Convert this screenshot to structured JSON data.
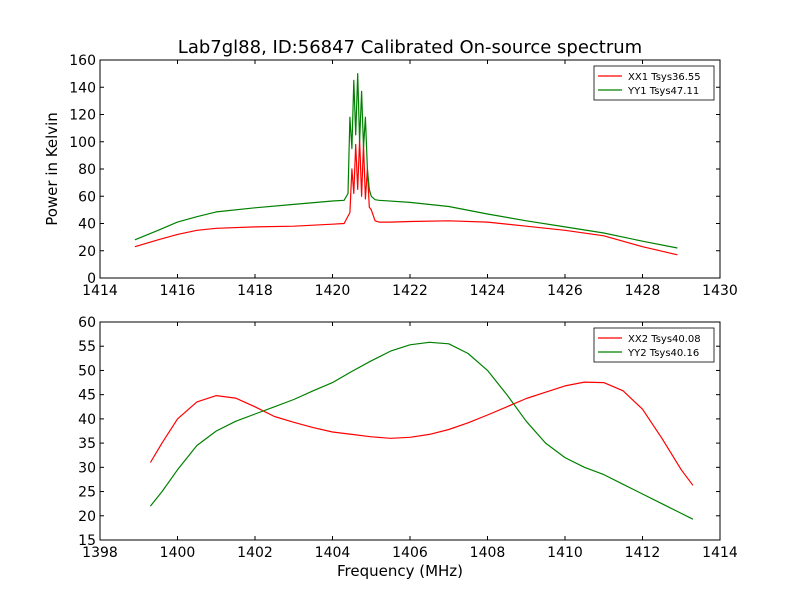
{
  "title": "Lab7gl88, ID:56847 Calibrated On-source spectrum",
  "chart_data": [
    {
      "type": "line",
      "xlabel": "",
      "ylabel": "Power in Kelvin",
      "xlim": [
        1414,
        1430
      ],
      "ylim": [
        0,
        160
      ],
      "xticks": [
        1414,
        1416,
        1418,
        1420,
        1422,
        1424,
        1426,
        1428,
        1430
      ],
      "yticks": [
        0,
        20,
        40,
        60,
        80,
        100,
        120,
        140,
        160
      ],
      "legend_position": "top-right",
      "series": [
        {
          "name": "XX1 Tsys36.55",
          "color": "#ff0000",
          "x": [
            1414.9,
            1415.5,
            1416.0,
            1416.5,
            1417.0,
            1418.0,
            1419.0,
            1420.0,
            1420.3,
            1420.45,
            1420.5,
            1420.55,
            1420.6,
            1420.65,
            1420.7,
            1420.75,
            1420.8,
            1420.85,
            1420.9,
            1420.95,
            1421.0,
            1421.1,
            1421.2,
            1421.5,
            1422.0,
            1423.0,
            1424.0,
            1425.0,
            1426.0,
            1427.0,
            1428.0,
            1428.9
          ],
          "y": [
            23,
            28,
            32,
            35,
            36.5,
            37.5,
            38,
            39.5,
            40,
            48,
            80,
            62,
            98,
            65,
            102,
            60,
            98,
            58,
            80,
            52,
            50,
            42,
            41,
            41,
            41.5,
            42,
            41,
            38,
            35,
            31,
            23,
            17
          ]
        },
        {
          "name": "YY1 Tsys47.11",
          "color": "#008000",
          "x": [
            1414.9,
            1415.5,
            1416.0,
            1416.5,
            1417.0,
            1418.0,
            1419.0,
            1420.0,
            1420.3,
            1420.4,
            1420.45,
            1420.5,
            1420.55,
            1420.6,
            1420.65,
            1420.7,
            1420.75,
            1420.8,
            1420.85,
            1420.9,
            1420.95,
            1421.0,
            1421.1,
            1421.2,
            1422.0,
            1423.0,
            1424.0,
            1425.0,
            1426.0,
            1427.0,
            1428.0,
            1428.9
          ],
          "y": [
            28,
            35,
            41,
            45,
            48.5,
            51.5,
            54,
            56.5,
            57,
            62,
            118,
            95,
            145,
            105,
            150,
            100,
            137,
            96,
            118,
            80,
            65,
            60,
            57.5,
            57,
            55.5,
            52.5,
            47,
            42,
            37.5,
            33,
            27,
            22
          ]
        }
      ]
    },
    {
      "type": "line",
      "xlabel": "Frequency (MHz)",
      "ylabel": "",
      "xlim": [
        1398,
        1414
      ],
      "ylim": [
        15,
        60
      ],
      "xticks": [
        1398,
        1400,
        1402,
        1404,
        1406,
        1408,
        1410,
        1412,
        1414
      ],
      "yticks": [
        15,
        20,
        25,
        30,
        35,
        40,
        45,
        50,
        55,
        60
      ],
      "legend_position": "top-right",
      "series": [
        {
          "name": "XX2 Tsys40.08",
          "color": "#ff0000",
          "x": [
            1399.3,
            1399.6,
            1400.0,
            1400.5,
            1401.0,
            1401.5,
            1402.0,
            1402.5,
            1403.0,
            1403.5,
            1404.0,
            1404.5,
            1405.0,
            1405.5,
            1406.0,
            1406.5,
            1407.0,
            1407.5,
            1408.0,
            1408.5,
            1409.0,
            1409.5,
            1410.0,
            1410.5,
            1411.0,
            1411.5,
            1412.0,
            1412.5,
            1413.0,
            1413.3
          ],
          "y": [
            31,
            35,
            40,
            43.5,
            44.8,
            44.3,
            42.5,
            40.5,
            39.3,
            38.2,
            37.3,
            36.8,
            36.3,
            36.0,
            36.2,
            36.8,
            37.8,
            39.2,
            40.8,
            42.5,
            44.2,
            45.5,
            46.8,
            47.6,
            47.5,
            45.8,
            42,
            36,
            29.5,
            26.3
          ]
        },
        {
          "name": "YY2 Tsys40.16",
          "color": "#008000",
          "x": [
            1399.3,
            1399.6,
            1400.0,
            1400.5,
            1401.0,
            1401.5,
            1402.0,
            1402.5,
            1403.0,
            1403.5,
            1404.0,
            1404.5,
            1405.0,
            1405.5,
            1406.0,
            1406.5,
            1407.0,
            1407.5,
            1408.0,
            1408.5,
            1409.0,
            1409.5,
            1410.0,
            1410.5,
            1411.0,
            1411.5,
            1412.0,
            1412.5,
            1413.0,
            1413.3
          ],
          "y": [
            22,
            25,
            29.5,
            34.5,
            37.5,
            39.5,
            41,
            42.5,
            44,
            45.8,
            47.5,
            49.8,
            52,
            54,
            55.3,
            55.8,
            55.5,
            53.5,
            50,
            45,
            39.5,
            35,
            32,
            30,
            28.5,
            26.5,
            24.5,
            22.5,
            20.5,
            19.3
          ]
        }
      ]
    }
  ]
}
